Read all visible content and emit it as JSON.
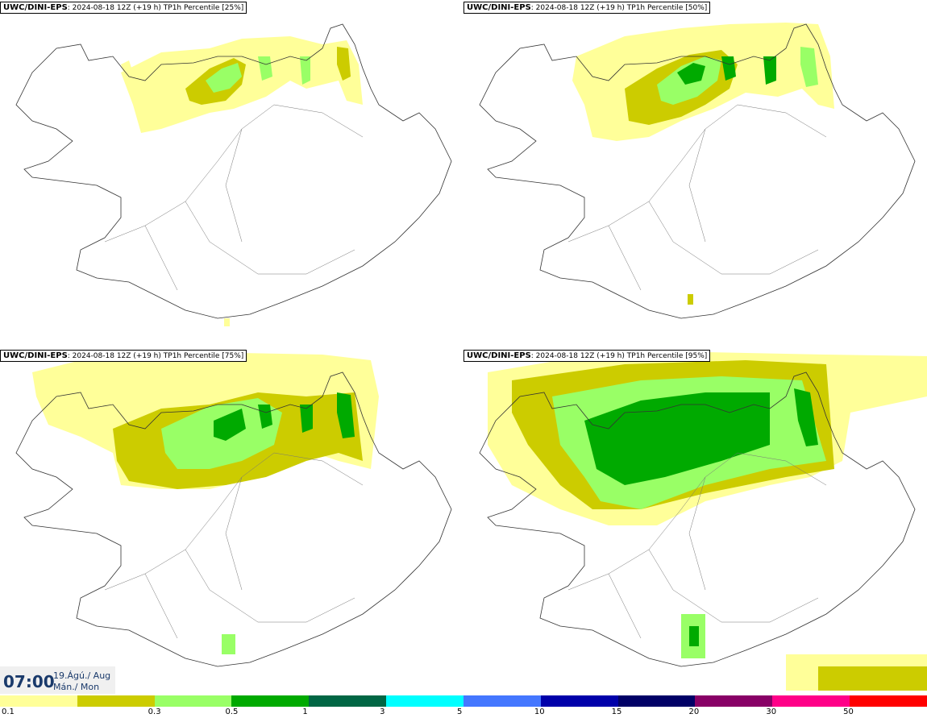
{
  "panels": [
    {
      "model": "UWC/DINI-EPS",
      "info": ": 2024-08-18 12Z (+19 h)",
      "field": "TP1h Percentile [25%]"
    },
    {
      "model": "UWC/DINI-EPS",
      "info": ": 2024-08-18 12Z (+19 h)",
      "field": "TP1h Percentile [50%]"
    },
    {
      "model": "UWC/DINI-EPS",
      "info": ": 2024-08-18 12Z (+19 h)",
      "field": "TP1h Percentile [75%]"
    },
    {
      "model": "UWC/DINI-EPS",
      "info": ": 2024-08-18 12Z (+19 h)",
      "field": "TP1h Percentile [95%]"
    }
  ],
  "timestamp": {
    "time": "07:00",
    "date_line1": "19.Ágú./ Aug",
    "date_line2": "Mán./ Mon"
  },
  "legend": {
    "colors": [
      "#ffff99",
      "#cccc00",
      "#99ff66",
      "#00aa00",
      "#006644",
      "#00ffff",
      "#4477ff",
      "#0000aa",
      "#000066",
      "#880066",
      "#ff0088",
      "#ff0000"
    ],
    "labels": [
      "0.1",
      "0.3",
      "0.5",
      "1",
      "3",
      "5",
      "10",
      "15",
      "20",
      "30",
      "50"
    ]
  }
}
